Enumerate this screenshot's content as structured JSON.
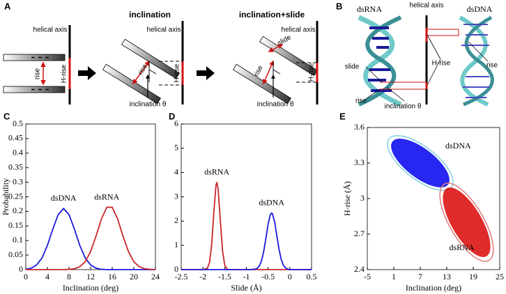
{
  "panel_a": {
    "label": "A",
    "titles": [
      "inclination",
      "inclination+slide"
    ],
    "helical_axis": "helical axis",
    "rise": "rise",
    "h_rise": "H-rise",
    "slide": "slide",
    "inclination": "inclination θ"
  },
  "panel_b": {
    "label": "B",
    "dsrna": "dsRNA",
    "dsdna": "dsDNA",
    "helical_axis": "helical axis",
    "slide": "slide",
    "h_rise": "H-rise",
    "rise": "rise",
    "inclination": "inclination θ"
  },
  "chart_data": [
    {
      "type": "line",
      "panel": "C",
      "xlabel": "Inclination (deg)",
      "ylabel": "Probability",
      "x": [
        0,
        1,
        2,
        3,
        4,
        5,
        6,
        7,
        8,
        9,
        10,
        11,
        12,
        13,
        14,
        15,
        16,
        17,
        18,
        19,
        20,
        21,
        22,
        23,
        24
      ],
      "series": [
        {
          "name": "dsDNA",
          "color": "#1a1adc",
          "values": [
            0.001,
            0.005,
            0.016,
            0.04,
            0.083,
            0.139,
            0.189,
            0.21,
            0.189,
            0.139,
            0.083,
            0.04,
            0.016,
            0.005,
            0.001,
            0,
            0,
            0,
            0,
            0,
            0,
            0,
            0,
            0,
            0
          ]
        },
        {
          "name": "dsRNA",
          "color": "#c8262a",
          "values": [
            0,
            0,
            0,
            0,
            0,
            0,
            0,
            0,
            0.001,
            0.003,
            0.01,
            0.027,
            0.062,
            0.115,
            0.174,
            0.214,
            0.214,
            0.174,
            0.115,
            0.062,
            0.027,
            0.01,
            0.003,
            0.001,
            0
          ]
        }
      ],
      "xlim": [
        0,
        24
      ],
      "xticks": [
        0,
        4,
        8,
        12,
        16,
        20,
        24
      ],
      "ylim": [
        0,
        0.5
      ],
      "yticks": [
        0,
        0.05,
        0.1,
        0.15,
        0.2,
        0.25,
        0.3,
        0.35,
        0.4,
        0.45,
        0.5
      ]
    },
    {
      "type": "line",
      "panel": "D",
      "xlabel": "Slide (Å)",
      "series": [
        {
          "name": "dsRNA",
          "color": "#c8262a",
          "x": [
            -2.5,
            -2.0,
            -1.9,
            -1.85,
            -1.8,
            -1.75,
            -1.7,
            -1.68,
            -1.65,
            -1.6,
            -1.55,
            -1.5,
            -1.45,
            -1.4,
            0.5
          ],
          "values": [
            0,
            0,
            0.05,
            0.28,
            1.0,
            2.33,
            3.47,
            3.6,
            3.32,
            2.04,
            0.8,
            0.2,
            0.03,
            0,
            0
          ]
        },
        {
          "name": "dsDNA",
          "color": "#1a1adc",
          "x": [
            -2.5,
            -0.9,
            -0.8,
            -0.75,
            -0.7,
            -0.65,
            -0.6,
            -0.55,
            -0.5,
            -0.45,
            -0.42,
            -0.4,
            -0.35,
            -0.3,
            -0.25,
            -0.2,
            -0.15,
            -0.1,
            -0.05,
            0,
            0.5
          ],
          "values": [
            0,
            0,
            0.02,
            0.05,
            0.15,
            0.37,
            0.76,
            1.3,
            1.87,
            2.26,
            2.33,
            2.3,
            1.97,
            1.41,
            0.86,
            0.43,
            0.19,
            0.07,
            0.02,
            0,
            0
          ]
        }
      ],
      "xlim": [
        -2.5,
        0.5
      ],
      "xticks": [
        -2.5,
        -2,
        -1.5,
        -1,
        -0.5,
        0,
        0.5
      ],
      "ylim": [
        0,
        6
      ],
      "yticks": [
        0,
        1,
        2,
        3,
        4,
        5,
        6
      ]
    },
    {
      "type": "scatter",
      "panel": "E",
      "xlabel": "Inclination (deg)",
      "ylabel": "H-rise (Å)",
      "series": [
        {
          "name": "dsDNA",
          "color": "#1010f0",
          "edge_color": "#7fd0e6",
          "x": 7,
          "y": 3.3,
          "x_range": [
            0.5,
            14
          ],
          "y_range": [
            3.08,
            3.5
          ]
        },
        {
          "name": "dsRNA",
          "color": "#dd1414",
          "edge_color": "#e07878",
          "x": 17.5,
          "y": 2.8,
          "x_range": [
            12,
            23
          ],
          "y_range": [
            2.5,
            3.1
          ]
        }
      ],
      "xlim": [
        -5,
        25
      ],
      "xticks": [
        -5,
        1,
        7,
        13,
        19,
        25
      ],
      "ylim": [
        2.4,
        3.6
      ],
      "yticks": [
        2.4,
        2.7,
        3,
        3.3,
        3.6
      ]
    }
  ]
}
